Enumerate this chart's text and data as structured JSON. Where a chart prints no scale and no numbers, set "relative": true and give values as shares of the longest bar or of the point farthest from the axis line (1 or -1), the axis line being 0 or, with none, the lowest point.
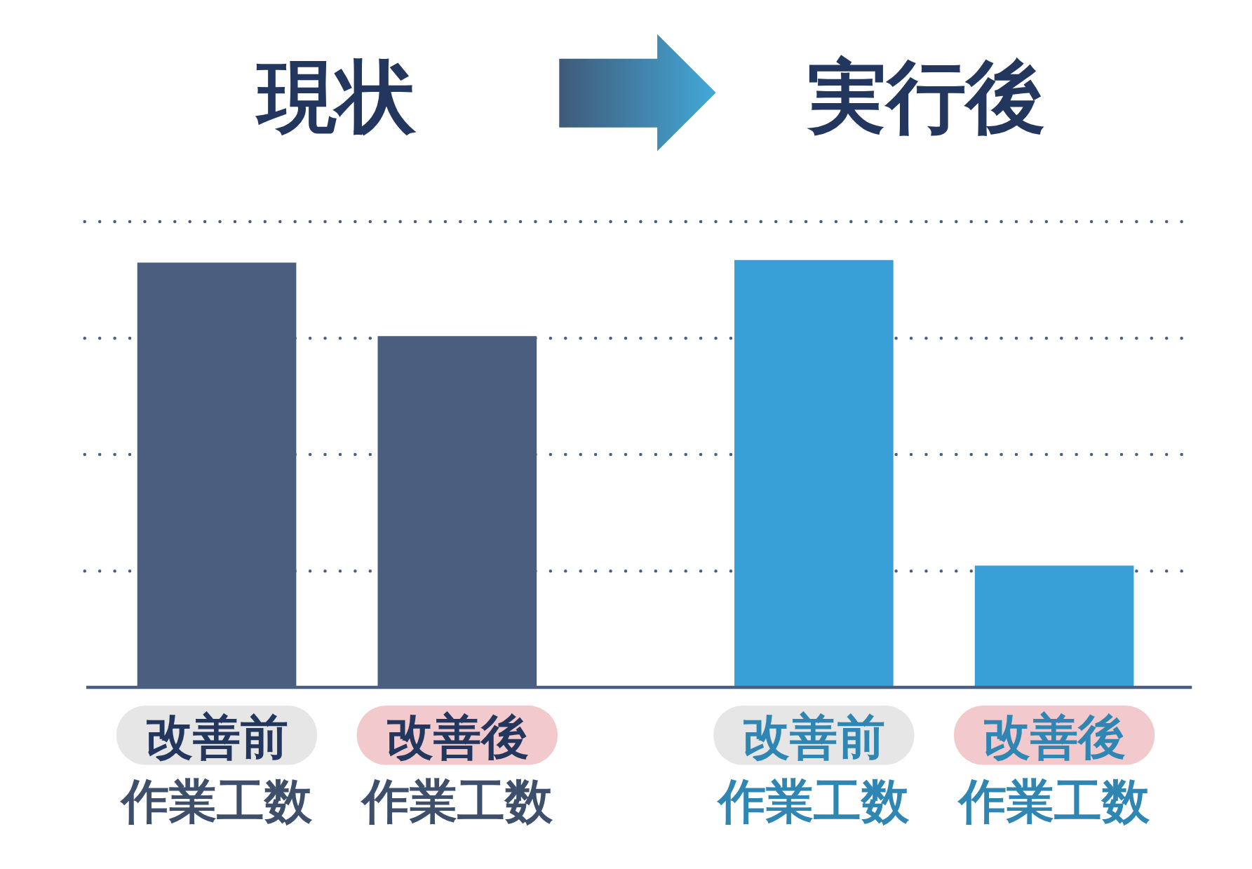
{
  "chart_data": {
    "type": "bar",
    "relative": true,
    "categories": [
      "改善前",
      "改善後",
      "改善前",
      "改善後"
    ],
    "series": [
      {
        "name": "現状",
        "color": "#4a5f80",
        "values": [
          0.994,
          0.822,
          null,
          null
        ]
      },
      {
        "name": "実行後",
        "color": "#38a0d6",
        "values": [
          null,
          null,
          1,
          0.285
        ]
      }
    ],
    "annotations": [
      "作業工数",
      "作業工数",
      "作業工数",
      "作業工数"
    ],
    "ref_lines": [
      {
        "axis": "y",
        "value": 1.09,
        "color": "#4a5f80",
        "line_style": "dotted"
      },
      {
        "axis": "y",
        "value": 0.817,
        "color": "#4a5f80",
        "line_style": "dotted"
      },
      {
        "axis": "y",
        "value": 0.545,
        "color": "#4a5f80",
        "line_style": "dotted"
      },
      {
        "axis": "y",
        "value": 0.272,
        "color": "#4a5f80",
        "line_style": "dotted"
      }
    ]
  }
}
